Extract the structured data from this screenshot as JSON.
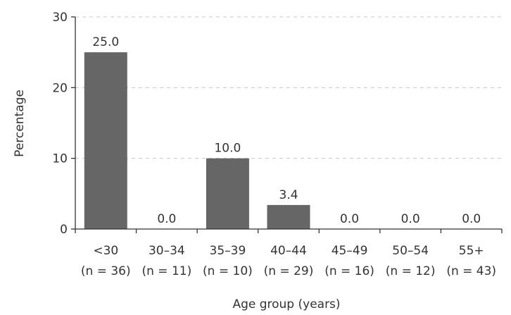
{
  "chart_data": {
    "type": "bar",
    "categories": [
      "<30",
      "30–34",
      "35–39",
      "40–44",
      "45–49",
      "50–54",
      "55+"
    ],
    "category_sublabels": [
      "(n = 36)",
      "(n = 11)",
      "(n = 10)",
      "(n = 29)",
      "(n = 16)",
      "(n = 12)",
      "(n = 43)"
    ],
    "values": [
      25.0,
      0.0,
      10.0,
      3.4,
      0.0,
      0.0,
      0.0
    ],
    "data_labels": [
      "25.0",
      "0.0",
      "10.0",
      "3.4",
      "0.0",
      "0.0",
      "0.0"
    ],
    "xlabel": "Age group (years)",
    "ylabel": "Percentage",
    "ylim": [
      0,
      30
    ],
    "yticks": [
      0,
      10,
      20,
      30
    ],
    "grid": "horizontal dashed",
    "bar_color": "#666666"
  }
}
